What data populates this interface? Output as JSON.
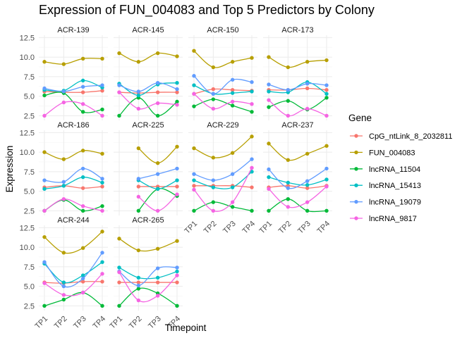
{
  "chart_data": {
    "type": "line",
    "title": "Expression of FUN_004083 and Top 5 Predictors by Colony",
    "xlabel": "Timepoint",
    "ylabel": "Expression",
    "x": [
      "TP1",
      "TP2",
      "TP3",
      "TP4"
    ],
    "y_ticks": [
      2.5,
      5.0,
      7.5,
      10.0,
      12.5
    ],
    "y_tick_labels": [
      "2.5",
      "5.0",
      "7.5",
      "10.0",
      "12.5"
    ],
    "ylim": [
      1.9,
      12.8
    ],
    "grid": true,
    "facet_grid": {
      "columns": 4
    },
    "legend": {
      "title": "Gene",
      "position": "right",
      "entries": [
        "CpG_ntLink_8_2032811",
        "FUN_004083",
        "lncRNA_11504",
        "lncRNA_15413",
        "lncRNA_19079",
        "lncRNA_9817"
      ]
    },
    "colors": {
      "CpG_ntLink_8_2032811": "#F8766D",
      "FUN_004083": "#B79F00",
      "lncRNA_11504": "#00BA38",
      "lncRNA_15413": "#00BFC4",
      "lncRNA_19079": "#619CFF",
      "lncRNA_9817": "#F564E3"
    },
    "facets": [
      {
        "name": "ACR-139",
        "series": {
          "CpG_ntLink_8_2032811": [
            5.6,
            5.5,
            5.5,
            5.7
          ],
          "FUN_004083": [
            9.4,
            9.1,
            9.8,
            9.8
          ],
          "lncRNA_11504": [
            5.1,
            5.4,
            3.0,
            3.3
          ],
          "lncRNA_15413": [
            5.8,
            5.7,
            7.0,
            6.1
          ],
          "lncRNA_19079": [
            6.0,
            5.6,
            6.2,
            6.4
          ],
          "lncRNA_9817": [
            2.5,
            4.2,
            4.0,
            2.5
          ]
        }
      },
      {
        "name": "ACR-145",
        "series": {
          "CpG_ntLink_8_2032811": [
            5.5,
            5.4,
            5.5,
            5.5
          ],
          "FUN_004083": [
            10.5,
            9.4,
            10.5,
            10.1
          ],
          "lncRNA_11504": [
            2.5,
            4.8,
            2.5,
            4.3
          ],
          "lncRNA_15413": [
            6.6,
            5.1,
            6.5,
            6.7
          ],
          "lncRNA_19079": [
            6.4,
            5.6,
            6.7,
            5.9
          ],
          "lncRNA_9817": [
            5.5,
            3.4,
            4.1,
            3.9
          ]
        }
      },
      {
        "name": "ACR-150",
        "series": {
          "CpG_ntLink_8_2032811": [
            5.3,
            5.9,
            5.8,
            5.7
          ],
          "FUN_004083": [
            10.8,
            8.7,
            9.4,
            9.9
          ],
          "lncRNA_11504": [
            3.7,
            4.6,
            3.8,
            3.0
          ],
          "lncRNA_15413": [
            6.4,
            5.3,
            5.4,
            5.6
          ],
          "lncRNA_19079": [
            7.6,
            5.3,
            7.1,
            6.8
          ],
          "lncRNA_9817": [
            5.3,
            3.4,
            4.3,
            4.0
          ]
        }
      },
      {
        "name": "ACR-173",
        "series": {
          "CpG_ntLink_8_2032811": [
            5.8,
            5.8,
            6.0,
            5.8
          ],
          "FUN_004083": [
            10.0,
            8.7,
            9.4,
            9.6
          ],
          "lncRNA_11504": [
            3.6,
            4.4,
            3.3,
            4.8
          ],
          "lncRNA_15413": [
            5.6,
            5.5,
            6.8,
            5.3
          ],
          "lncRNA_19079": [
            6.5,
            5.8,
            6.6,
            6.4
          ],
          "lncRNA_9817": [
            4.5,
            2.5,
            3.4,
            2.5
          ]
        }
      },
      {
        "name": "ACR-186",
        "series": {
          "CpG_ntLink_8_2032811": [
            5.5,
            5.7,
            5.4,
            5.6
          ],
          "FUN_004083": [
            10.0,
            9.1,
            10.2,
            9.8
          ],
          "lncRNA_11504": [
            2.5,
            3.9,
            2.5,
            3.1
          ],
          "lncRNA_15413": [
            5.3,
            5.7,
            6.8,
            6.1
          ],
          "lncRNA_19079": [
            6.4,
            6.2,
            7.9,
            6.6
          ],
          "lncRNA_9817": [
            2.5,
            4.0,
            3.1,
            2.5
          ]
        }
      },
      {
        "name": "ACR-225",
        "series": {
          "CpG_ntLink_8_2032811": [
            null,
            5.6,
            5.6,
            5.6
          ],
          "FUN_004083": [
            null,
            10.5,
            8.6,
            10.7
          ],
          "lncRNA_11504": [
            null,
            2.5,
            5.3,
            4.4
          ],
          "lncRNA_15413": [
            null,
            6.4,
            5.3,
            6.4
          ],
          "lncRNA_19079": [
            null,
            6.6,
            7.2,
            7.9
          ],
          "lncRNA_9817": [
            null,
            4.3,
            2.5,
            4.6
          ]
        }
      },
      {
        "name": "ACR-229",
        "series": {
          "CpG_ntLink_8_2032811": [
            5.7,
            5.7,
            5.7,
            5.5
          ],
          "FUN_004083": [
            10.5,
            9.3,
            9.9,
            12.0
          ],
          "lncRNA_11504": [
            2.5,
            3.6,
            3.0,
            2.5
          ],
          "lncRNA_15413": [
            6.4,
            5.5,
            5.5,
            7.5
          ],
          "lncRNA_19079": [
            7.2,
            6.4,
            7.2,
            9.1
          ],
          "lncRNA_9817": [
            5.2,
            2.5,
            3.6,
            8.0
          ]
        }
      },
      {
        "name": "ACR-237",
        "series": {
          "CpG_ntLink_8_2032811": [
            5.5,
            5.7,
            5.4,
            5.7
          ],
          "FUN_004083": [
            11.1,
            9.0,
            9.8,
            10.8
          ],
          "lncRNA_11504": [
            2.5,
            4.0,
            2.5,
            2.5
          ],
          "lncRNA_15413": [
            6.8,
            6.1,
            5.8,
            6.5
          ],
          "lncRNA_19079": [
            7.8,
            5.4,
            6.3,
            7.9
          ],
          "lncRNA_9817": [
            5.3,
            3.0,
            3.6,
            5.6
          ]
        }
      },
      {
        "name": "ACR-244",
        "series": {
          "CpG_ntLink_8_2032811": [
            5.5,
            5.4,
            5.6,
            5.6
          ],
          "FUN_004083": [
            11.3,
            9.3,
            9.9,
            12.0
          ],
          "lncRNA_11504": [
            2.5,
            3.3,
            4.2,
            2.5
          ],
          "lncRNA_15413": [
            7.9,
            5.5,
            6.4,
            8.1
          ],
          "lncRNA_19079": [
            8.1,
            5.0,
            6.0,
            9.3
          ],
          "lncRNA_9817": [
            5.4,
            3.9,
            4.2,
            6.6
          ]
        }
      },
      {
        "name": "ACR-265",
        "series": {
          "CpG_ntLink_8_2032811": [
            5.5,
            5.5,
            5.5,
            5.5
          ],
          "FUN_004083": [
            11.1,
            9.6,
            9.8,
            10.8
          ],
          "lncRNA_11504": [
            2.5,
            4.7,
            4.1,
            2.5
          ],
          "lncRNA_15413": [
            7.4,
            6.1,
            6.1,
            6.9
          ],
          "lncRNA_19079": [
            6.9,
            5.1,
            7.3,
            7.4
          ],
          "lncRNA_9817": [
            6.8,
            3.2,
            3.8,
            6.4
          ]
        }
      }
    ]
  }
}
